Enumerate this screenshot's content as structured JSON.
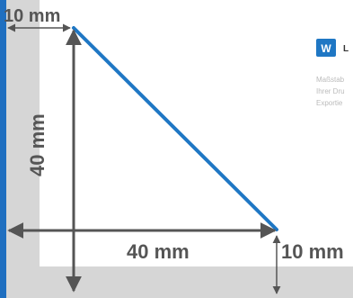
{
  "colors": {
    "accent_bar": "#1f6fc0",
    "triangle_stroke": "#1f77c4",
    "dimension_lines": "#555555",
    "margin_band": "#d6d6d6",
    "logo_bg": "#1f77c4"
  },
  "dimensions": {
    "top_margin": "10 mm",
    "height": "40 mm",
    "base": "40 mm",
    "right_margin": "10 mm"
  },
  "logo": {
    "icon": "w-logo-icon",
    "mark_text": "W",
    "word": "L"
  },
  "panel_text": {
    "line1": "Maßstab",
    "line2": "Ihrer Dru",
    "line3": "Exportie"
  }
}
